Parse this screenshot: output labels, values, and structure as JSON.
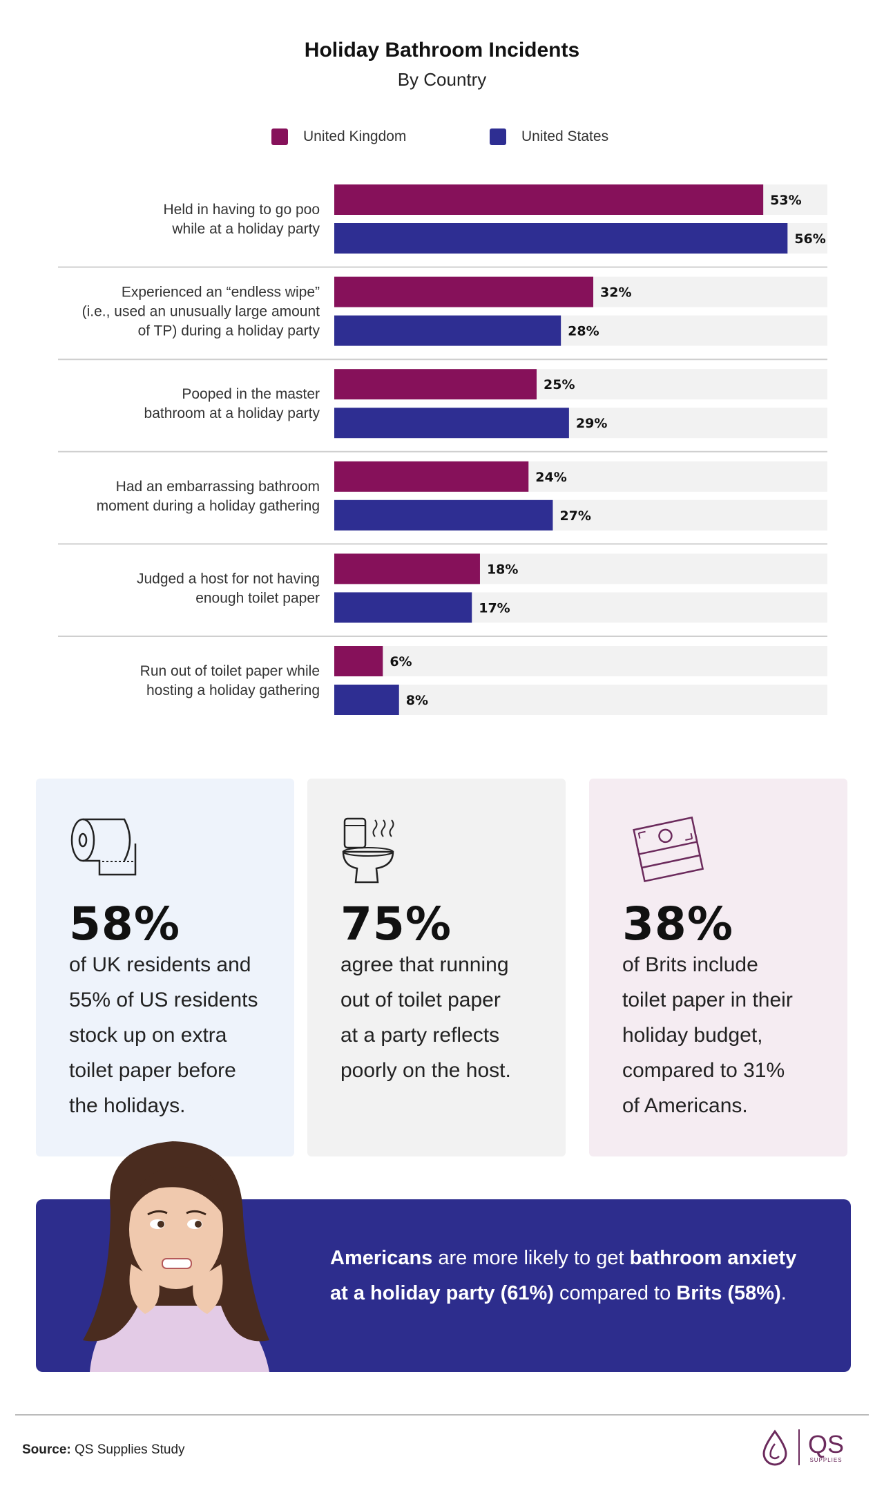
{
  "header": {
    "title": "Holiday Bathroom Incidents",
    "subtitle": "By Country"
  },
  "colors": {
    "uk": "#86115a",
    "us": "#2e2e92",
    "track": "#f2f2f2"
  },
  "chart_data": {
    "type": "bar",
    "orientation": "horizontal",
    "title": "Holiday Bathroom Incidents",
    "subtitle": "By Country",
    "unit": "%",
    "xlim": [
      0,
      65
    ],
    "legend_placement": "top",
    "categories": [
      [
        "Held in having to go poo",
        "while at a holiday party"
      ],
      [
        "Experienced an “endless wipe”",
        "(i.e., used an unusually large amount",
        "of TP) during a holiday party"
      ],
      [
        "Pooped in the master",
        "bathroom at a holiday party"
      ],
      [
        "Had an embarrassing bathroom",
        "moment during a holiday gathering"
      ],
      [
        "Judged a host for not having",
        "enough toilet paper"
      ],
      [
        "Run out of toilet paper while",
        "hosting a holiday gathering"
      ]
    ],
    "series": [
      {
        "name": "United Kingdom",
        "color": "#86115a",
        "values": [
          53,
          32,
          25,
          24,
          18,
          6
        ]
      },
      {
        "name": "United States",
        "color": "#2e2e92",
        "values": [
          56,
          28,
          29,
          27,
          17,
          8
        ]
      }
    ]
  },
  "cards": [
    {
      "percent": "58%",
      "icon": "toilet-paper-icon",
      "lines": [
        "of UK residents and",
        "55% of US residents",
        "stock up on extra",
        "toilet paper before",
        "the holidays."
      ]
    },
    {
      "percent": "75%",
      "icon": "toilet-icon",
      "lines": [
        "agree that running",
        "out of toilet paper",
        "at a party reflects",
        "poorly on the host."
      ]
    },
    {
      "percent": "38%",
      "icon": "money-icon",
      "lines": [
        "of Brits include",
        "toilet paper in their",
        "holiday budget,",
        "compared to 31%",
        "of Americans."
      ]
    }
  ],
  "banner": {
    "p1": "Americans",
    "p2": " are more likely to get ",
    "p3": "bathroom anxiety at a holiday party (61%)",
    "p4": " compared to ",
    "p5": "Brits (58%)",
    "p6": "."
  },
  "footer": {
    "source_label": "Source:",
    "source_text": " QS Supplies Study",
    "logo_text": "QS",
    "logo_sub": "SUPPLIES"
  }
}
